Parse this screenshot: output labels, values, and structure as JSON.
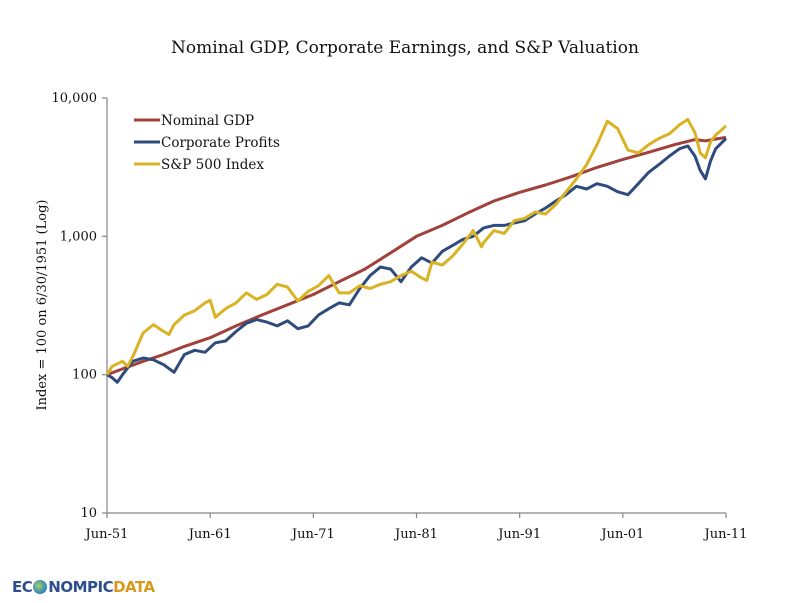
{
  "chart_data": {
    "type": "line",
    "title": "Nominal GDP, Corporate Earnings, and S&P Valuation",
    "xlabel": "",
    "ylabel": "Index = 100 on 6/30/1951 (Log)",
    "yscale": "log",
    "ylim": [
      10,
      10000
    ],
    "xlim": [
      1951.5,
      2011.5
    ],
    "y_ticks": [
      10,
      100,
      1000,
      10000
    ],
    "y_tick_labels": [
      "10",
      "100",
      "1,000",
      "10,000"
    ],
    "x_ticks": [
      1951.5,
      1961.5,
      1971.5,
      1981.5,
      1991.5,
      2001.5,
      2011.5
    ],
    "x_tick_labels": [
      "Jun-51",
      "Jun-61",
      "Jun-71",
      "Jun-81",
      "Jun-91",
      "Jun-01",
      "Jun-11"
    ],
    "grid": false,
    "legend_position": "top-left",
    "series": [
      {
        "name": "Nominal GDP",
        "color": "#a0413c",
        "x": [
          1951.5,
          1953,
          1955,
          1957,
          1959,
          1961.5,
          1964,
          1966.5,
          1969,
          1971.5,
          1974,
          1976.5,
          1979,
          1981.5,
          1984,
          1986.5,
          1989,
          1991.5,
          1994,
          1996.5,
          1999,
          2001.5,
          2004,
          2006.5,
          2008.5,
          2009.5,
          2011.5
        ],
        "values": [
          100,
          110,
          125,
          140,
          160,
          185,
          225,
          270,
          320,
          380,
          470,
          580,
          760,
          1000,
          1200,
          1480,
          1800,
          2080,
          2350,
          2700,
          3150,
          3600,
          4050,
          4600,
          5000,
          4900,
          5200
        ]
      },
      {
        "name": "Corporate Profits",
        "color": "#2f4b7c",
        "x": [
          1951.5,
          1952,
          1952.5,
          1953,
          1954,
          1955,
          1956,
          1957,
          1958,
          1959,
          1960,
          1961,
          1962,
          1963,
          1964,
          1965,
          1966,
          1967,
          1968,
          1969,
          1970,
          1971,
          1972,
          1973,
          1974,
          1975,
          1976,
          1977,
          1978,
          1979,
          1980,
          1981,
          1982,
          1983,
          1984,
          1985,
          1986,
          1987,
          1988,
          1989,
          1990,
          1991,
          1992,
          1993,
          1994,
          1995,
          1996,
          1997,
          1998,
          1999,
          2000,
          2001,
          2002,
          2003,
          2004,
          2005,
          2006,
          2007,
          2007.8,
          2008.5,
          2009,
          2009.5,
          2010,
          2010.5,
          2011.5
        ],
        "values": [
          100,
          95,
          88,
          100,
          125,
          132,
          128,
          118,
          104,
          140,
          150,
          145,
          170,
          175,
          205,
          235,
          250,
          240,
          225,
          245,
          215,
          225,
          270,
          300,
          330,
          320,
          420,
          520,
          600,
          580,
          470,
          600,
          700,
          640,
          780,
          860,
          950,
          1000,
          1150,
          1200,
          1200,
          1250,
          1300,
          1450,
          1600,
          1800,
          2000,
          2300,
          2200,
          2400,
          2300,
          2100,
          2000,
          2400,
          2900,
          3300,
          3800,
          4300,
          4500,
          3800,
          3000,
          2600,
          3500,
          4300,
          5100
        ]
      },
      {
        "name": "S&P 500 Index",
        "color": "#d9b324",
        "x": [
          1951.5,
          1952,
          1953,
          1953.5,
          1954,
          1955,
          1956,
          1957,
          1957.5,
          1958,
          1959,
          1960,
          1961,
          1961.5,
          1962,
          1963,
          1964,
          1965,
          1966,
          1967,
          1968,
          1969,
          1970,
          1971,
          1972,
          1973,
          1974,
          1975,
          1976,
          1977,
          1978,
          1979,
          1980,
          1981,
          1982,
          1982.5,
          1983,
          1984,
          1985,
          1986,
          1987,
          1987.8,
          1988,
          1989,
          1990,
          1991,
          1992,
          1993,
          1994,
          1995,
          1996,
          1997,
          1998,
          1999,
          2000,
          2001,
          2002,
          2003,
          2004,
          2005,
          2006,
          2007,
          2007.8,
          2008.5,
          2009,
          2009.5,
          2010,
          2010.5,
          2011,
          2011.5
        ],
        "values": [
          100,
          115,
          125,
          115,
          135,
          200,
          230,
          205,
          195,
          230,
          270,
          290,
          330,
          345,
          260,
          300,
          330,
          390,
          350,
          380,
          450,
          430,
          340,
          400,
          440,
          520,
          390,
          390,
          440,
          420,
          450,
          470,
          520,
          560,
          500,
          480,
          650,
          620,
          720,
          880,
          1100,
          840,
          900,
          1100,
          1050,
          1300,
          1350,
          1500,
          1450,
          1700,
          2100,
          2600,
          3300,
          4600,
          6800,
          6000,
          4200,
          4000,
          4600,
          5100,
          5500,
          6400,
          7000,
          5600,
          4000,
          3700,
          4800,
          5400,
          5800,
          6300
        ]
      }
    ]
  },
  "branding": {
    "logo_part1": "EC",
    "logo_part2": "NOMPIC",
    "logo_part3": "DATA"
  }
}
